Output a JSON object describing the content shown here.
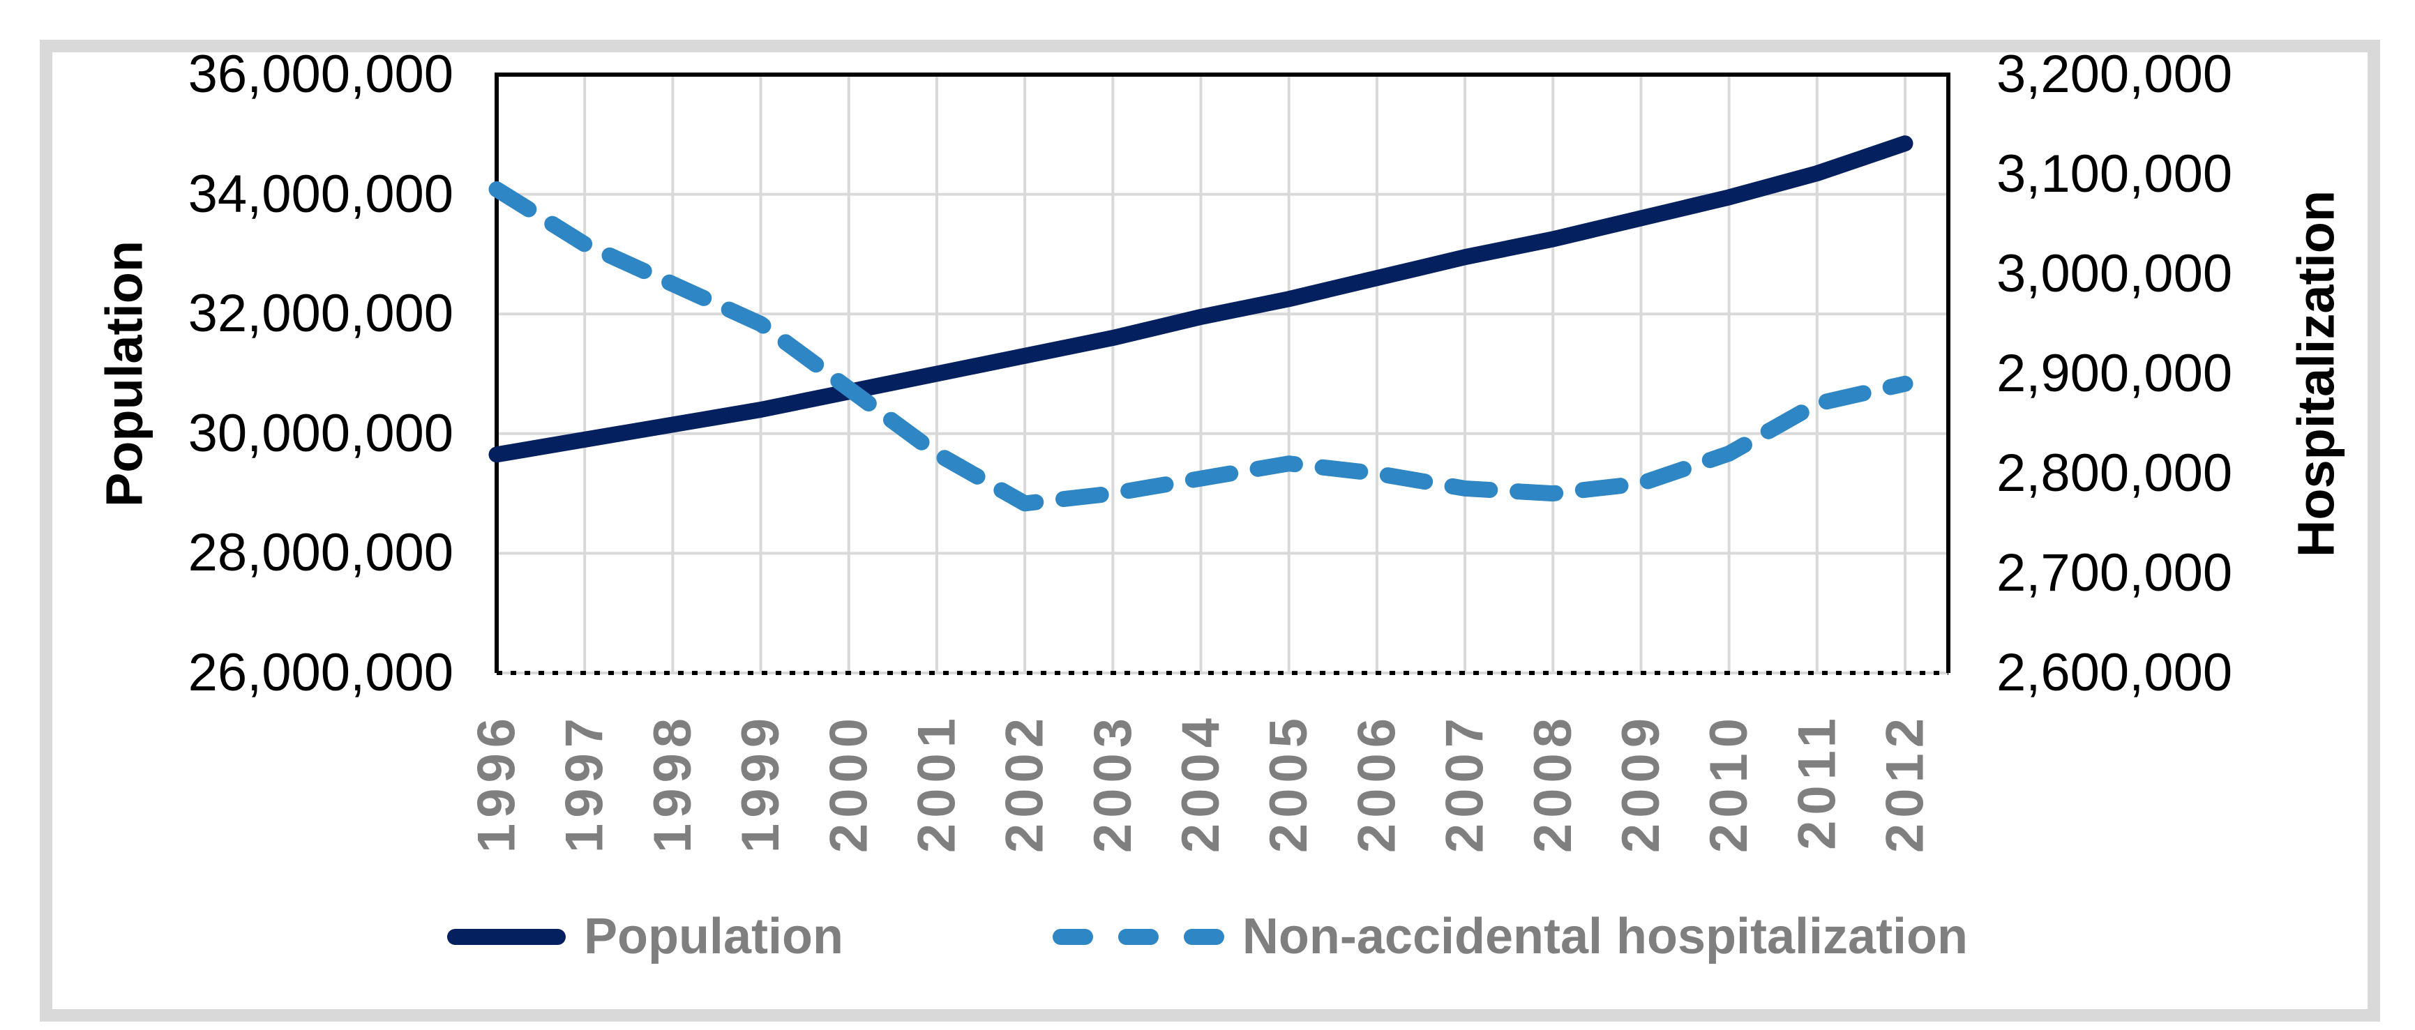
{
  "figure": {
    "background": "#ffffff",
    "frame_color": "#d9d9d9"
  },
  "chart_data": {
    "type": "line",
    "title": "",
    "categories": [
      "1996",
      "1997",
      "1998",
      "1999",
      "2000",
      "2001",
      "2002",
      "2003",
      "2004",
      "2005",
      "2006",
      "2007",
      "2008",
      "2009",
      "2010",
      "2011",
      "2012"
    ],
    "series": [
      {
        "name": "Population",
        "axis": "left",
        "color": "#04205f",
        "line_style": "solid",
        "values": [
          29650000,
          29900000,
          30150000,
          30400000,
          30700000,
          31000000,
          31300000,
          31600000,
          31950000,
          32250000,
          32600000,
          32950000,
          33250000,
          33600000,
          33950000,
          34350000,
          34850000
        ]
      },
      {
        "name": "Non-accidental hospitalization",
        "axis": "right",
        "color": "#2e86c4",
        "line_style": "dashed",
        "values": [
          3085000,
          3030000,
          2990000,
          2950000,
          2885000,
          2820000,
          2770000,
          2780000,
          2795000,
          2810000,
          2800000,
          2785000,
          2780000,
          2790000,
          2820000,
          2870000,
          2890000
        ]
      }
    ],
    "left_axis": {
      "label": "Population",
      "min": 26000000,
      "max": 36000000,
      "tick_step": 2000000,
      "tick_labels_top_to_bottom": [
        "36,000,000",
        "34,000,000",
        "32,000,000",
        "30,000,000",
        "28,000,000",
        "26,000,000"
      ]
    },
    "right_axis": {
      "label": "Hospitalization",
      "min": 2600000,
      "max": 3200000,
      "tick_step": 100000,
      "tick_labels_top_to_bottom": [
        "3,200,000",
        "3,100,000",
        "3,000,000",
        "2,900,000",
        "2,800,000",
        "2,700,000",
        "2,600,000"
      ]
    },
    "x_axis": {
      "label": "",
      "tick_labels": [
        "1996",
        "1997",
        "1998",
        "1999",
        "2000",
        "2001",
        "2002",
        "2003",
        "2004",
        "2005",
        "2006",
        "2007",
        "2008",
        "2009",
        "2010",
        "2011",
        "2012"
      ],
      "tick_label_color": "#7f7f7f"
    },
    "legend": {
      "position": "bottom",
      "entries": [
        "Population",
        "Non-accidental hospitalization"
      ],
      "label_color": "#7f7f7f"
    },
    "grid": {
      "color": "#d9d9d9",
      "horizontal": "left_axis_ticks",
      "vertical": "every_year"
    },
    "plot_border": {
      "left_top_right": "solid_black",
      "bottom": "dotted_black"
    }
  }
}
